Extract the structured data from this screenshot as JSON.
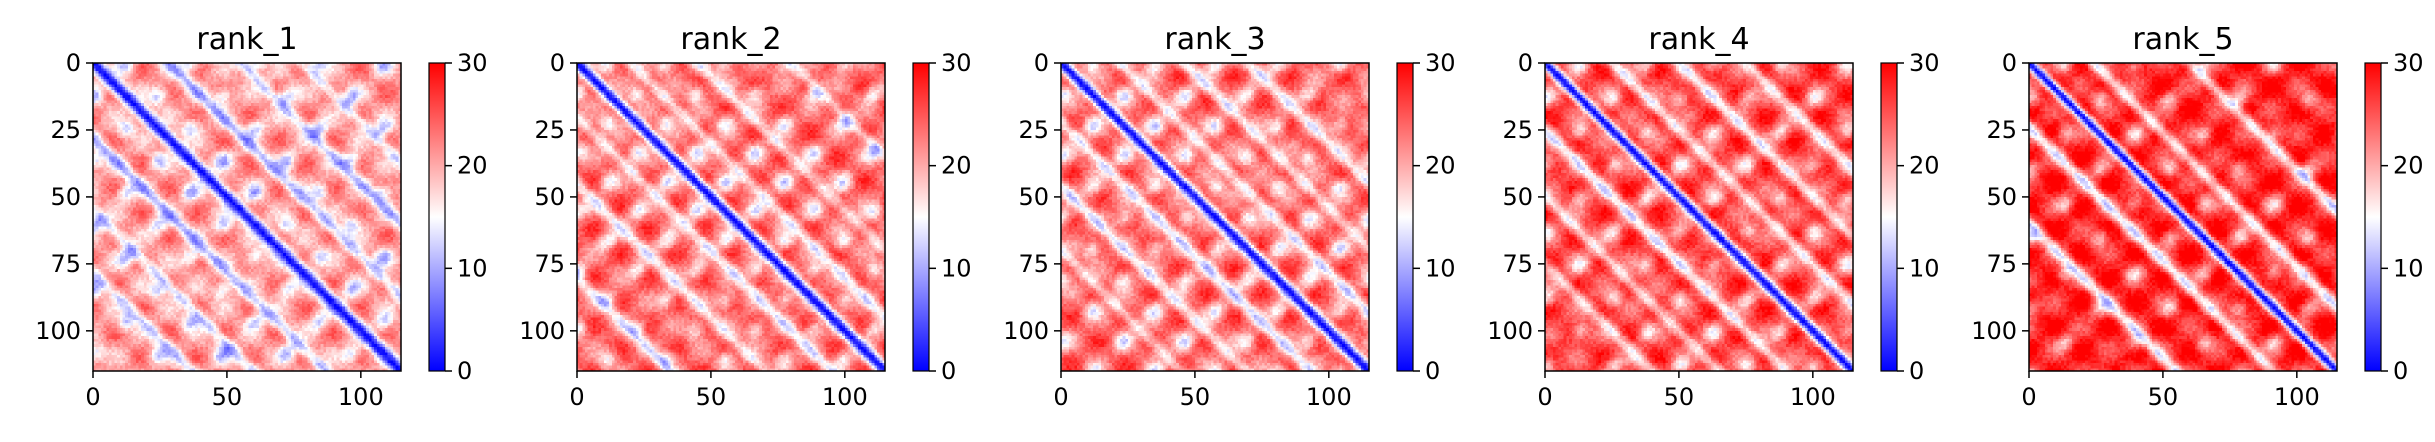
{
  "chart_data": [
    {
      "type": "heatmap",
      "title": "rank_1",
      "n": 115,
      "x_ticks": [
        "0",
        "50",
        "100"
      ],
      "y_ticks": [
        "0",
        "25",
        "50",
        "75",
        "100"
      ],
      "xlim": [
        0,
        115
      ],
      "ylim": [
        115,
        0
      ],
      "colorbar": {
        "cmap": "bwr",
        "min": 0,
        "max": 30,
        "ticks": [
          "0",
          "10",
          "20",
          "30"
        ]
      },
      "pattern": {
        "diag_width": 3.5,
        "bands": [
          [
            28,
            10
          ],
          [
            55,
            9
          ],
          [
            78,
            8
          ]
        ],
        "blob_period": 24,
        "base": 21
      }
    },
    {
      "type": "heatmap",
      "title": "rank_2",
      "n": 115,
      "x_ticks": [
        "0",
        "50",
        "100"
      ],
      "y_ticks": [
        "0",
        "25",
        "50",
        "75",
        "100"
      ],
      "xlim": [
        0,
        115
      ],
      "ylim": [
        115,
        0
      ],
      "colorbar": {
        "cmap": "bwr",
        "min": 0,
        "max": 30,
        "ticks": [
          "0",
          "10",
          "20",
          "30"
        ]
      },
      "pattern": {
        "diag_width": 3.2,
        "bands": [
          [
            20,
            9
          ],
          [
            45,
            8
          ],
          [
            80,
            8
          ]
        ],
        "blob_period": 22,
        "base": 24
      }
    },
    {
      "type": "heatmap",
      "title": "rank_3",
      "n": 115,
      "x_ticks": [
        "0",
        "50",
        "100"
      ],
      "y_ticks": [
        "0",
        "25",
        "50",
        "75",
        "100"
      ],
      "xlim": [
        0,
        115
      ],
      "ylim": [
        115,
        0
      ],
      "colorbar": {
        "cmap": "bwr",
        "min": 0,
        "max": 30,
        "ticks": [
          "0",
          "10",
          "20",
          "30"
        ]
      },
      "pattern": {
        "diag_width": 3.2,
        "bands": [
          [
            22,
            10
          ],
          [
            46,
            9
          ],
          [
            70,
            8
          ]
        ],
        "blob_period": 23,
        "base": 24
      }
    },
    {
      "type": "heatmap",
      "title": "rank_4",
      "n": 115,
      "x_ticks": [
        "0",
        "50",
        "100"
      ],
      "y_ticks": [
        "0",
        "25",
        "50",
        "75",
        "100"
      ],
      "xlim": [
        0,
        115
      ],
      "ylim": [
        115,
        0
      ],
      "colorbar": {
        "cmap": "bwr",
        "min": 0,
        "max": 30,
        "ticks": [
          "0",
          "10",
          "20",
          "30"
        ]
      },
      "pattern": {
        "diag_width": 3.0,
        "bands": [
          [
            25,
            11
          ],
          [
            50,
            10
          ],
          [
            75,
            9
          ]
        ],
        "blob_period": 25,
        "base": 26
      }
    },
    {
      "type": "heatmap",
      "title": "rank_5",
      "n": 115,
      "x_ticks": [
        "0",
        "50",
        "100"
      ],
      "y_ticks": [
        "0",
        "25",
        "50",
        "75",
        "100"
      ],
      "xlim": [
        0,
        115
      ],
      "ylim": [
        115,
        0
      ],
      "colorbar": {
        "cmap": "bwr",
        "min": 0,
        "max": 30,
        "ticks": [
          "0",
          "10",
          "20",
          "30"
        ]
      },
      "pattern": {
        "diag_width": 2.8,
        "bands": [
          [
            24,
            13
          ],
          [
            60,
            12
          ]
        ],
        "blob_period": 26,
        "base": 28
      }
    }
  ]
}
